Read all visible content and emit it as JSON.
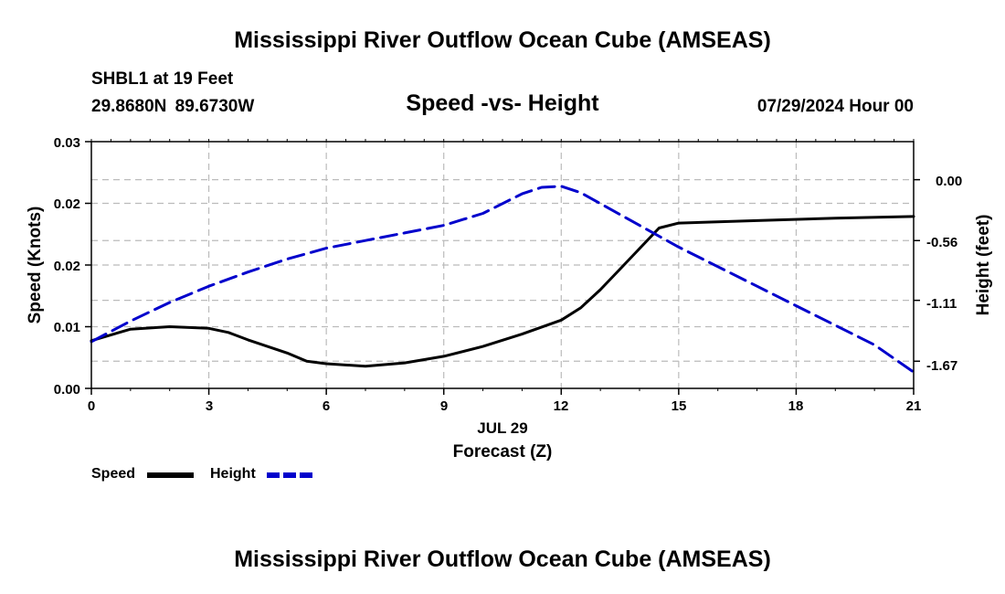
{
  "header": {
    "title": "Mississippi River Outflow Ocean Cube (AMSEAS)",
    "station": "SHBL1 at 19 Feet",
    "coords": "29.8680N  89.6730W",
    "subtitle": "Speed -vs- Height",
    "datetime": "07/29/2024 Hour 00"
  },
  "footer": {
    "title": "Mississippi River Outflow Ocean Cube (AMSEAS)"
  },
  "legend": {
    "speed_label": "Speed",
    "height_label": "Height"
  },
  "colors": {
    "speed": "#000000",
    "height": "#0000cc",
    "grid": "#bbbbbb"
  },
  "chart_data": {
    "type": "line",
    "title": "Speed -vs- Height",
    "xlabel": "Forecast (Z)",
    "xsublabel": "JUL 29",
    "ylabel": "Speed (Knots)",
    "y2label": "Height (feet)",
    "xlim": [
      0,
      21
    ],
    "ylim": [
      0,
      0.03
    ],
    "y2lim": [
      -1.92,
      0.35
    ],
    "x_ticks": [
      0,
      3,
      6,
      9,
      12,
      15,
      18,
      21
    ],
    "x_tick_labels": [
      "0",
      "3",
      "6",
      "9",
      "12",
      "15",
      "18",
      "21"
    ],
    "y_ticks": [
      0,
      0.0075,
      0.015,
      0.0225,
      0.03
    ],
    "y_tick_labels": [
      "0.00",
      "0.01",
      "0.02",
      "0.02",
      "0.03"
    ],
    "y2_ticks": [
      0.0,
      -0.56,
      -1.11,
      -1.67
    ],
    "y2_tick_labels": [
      "0.00",
      "-0.56",
      "-1.11",
      "-1.67"
    ],
    "series": [
      {
        "name": "Speed",
        "axis": "left",
        "style": "solid",
        "x": [
          0,
          1,
          2,
          3,
          3.5,
          4,
          5,
          5.5,
          6,
          7,
          8,
          9,
          10,
          11,
          12,
          12.5,
          13,
          13.5,
          14,
          14.5,
          15,
          17,
          19,
          21
        ],
        "values": [
          0.0058,
          0.0072,
          0.0075,
          0.0073,
          0.0068,
          0.0059,
          0.0043,
          0.0033,
          0.003,
          0.0027,
          0.0031,
          0.0039,
          0.0051,
          0.0066,
          0.0083,
          0.0098,
          0.012,
          0.0145,
          0.017,
          0.0195,
          0.0201,
          0.0204,
          0.0207,
          0.0209
        ]
      },
      {
        "name": "Height",
        "axis": "right",
        "style": "dashed",
        "x": [
          0,
          1,
          2,
          3,
          4,
          5,
          6,
          7,
          8,
          9,
          10,
          11,
          11.5,
          12,
          12.5,
          13,
          14,
          15,
          16,
          17,
          18,
          19,
          20,
          21
        ],
        "values": [
          -1.49,
          -1.3,
          -1.13,
          -0.98,
          -0.85,
          -0.73,
          -0.63,
          -0.56,
          -0.49,
          -0.42,
          -0.31,
          -0.13,
          -0.07,
          -0.06,
          -0.12,
          -0.22,
          -0.42,
          -0.62,
          -0.8,
          -0.98,
          -1.16,
          -1.34,
          -1.52,
          -1.77
        ]
      }
    ]
  }
}
